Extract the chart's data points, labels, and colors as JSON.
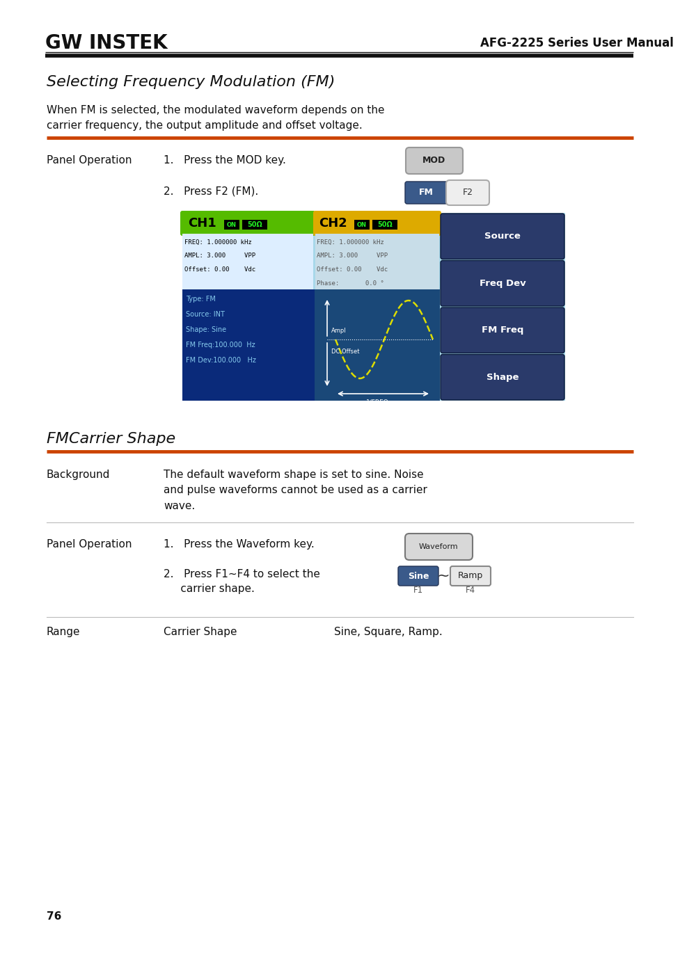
{
  "page_bg": "#ffffff",
  "header_text_left": "GW INSTEK",
  "header_text_right": "AFG-2225 Series User Manual",
  "orange_line_color": "#cc4400",
  "section1_title": "Selecting Frequency Modulation (FM)",
  "section1_body_1": "When FM is selected, the modulated waveform depends on the",
  "section1_body_2": "carrier frequency, the output amplitude and offset voltage.",
  "panel_op_label": "Panel Operation",
  "step1_text": "1.   Press the MOD key.",
  "step2_text": "2.   Press F2 (FM).",
  "mod_button_text": "MOD",
  "fm_button_text": "FM",
  "f2_button_text": "F2",
  "section2_title": "FMCarrier Shape",
  "background_label": "Background",
  "background_text_1": "The default waveform shape is set to sine. Noise",
  "background_text_2": "and pulse waveforms cannot be used as a carrier",
  "background_text_3": "wave.",
  "panel_op2_label": "Panel Operation",
  "step3_text": "1.   Press the Waveform key.",
  "waveform_button_text": "Waveform",
  "step4_text_1": "2.   Press F1~F4 to select the",
  "step4_text_2": "     carrier shape.",
  "sine_button_text": "Sine",
  "ramp_button_text": "Ramp",
  "f1_label": "F1",
  "f4_label": "F4",
  "range_label": "Range",
  "range_col1": "Carrier Shape",
  "range_col2": "Sine, Square, Ramp.",
  "page_number": "76",
  "ch1_color": "#55bb00",
  "ch2_color": "#ddaa00",
  "screen_light_bg": "#a8d8ea",
  "screen_mid_bg": "#7bb8cc",
  "dark_blue": "#0a2a7a",
  "medium_blue": "#1a4a9a",
  "wave_color": "#dddd00",
  "right_btn_color": "#2a3a6a",
  "fm_btn_color": "#3a5a8a",
  "sine_btn_color": "#3a5a8a",
  "tilde_color": "#333333"
}
